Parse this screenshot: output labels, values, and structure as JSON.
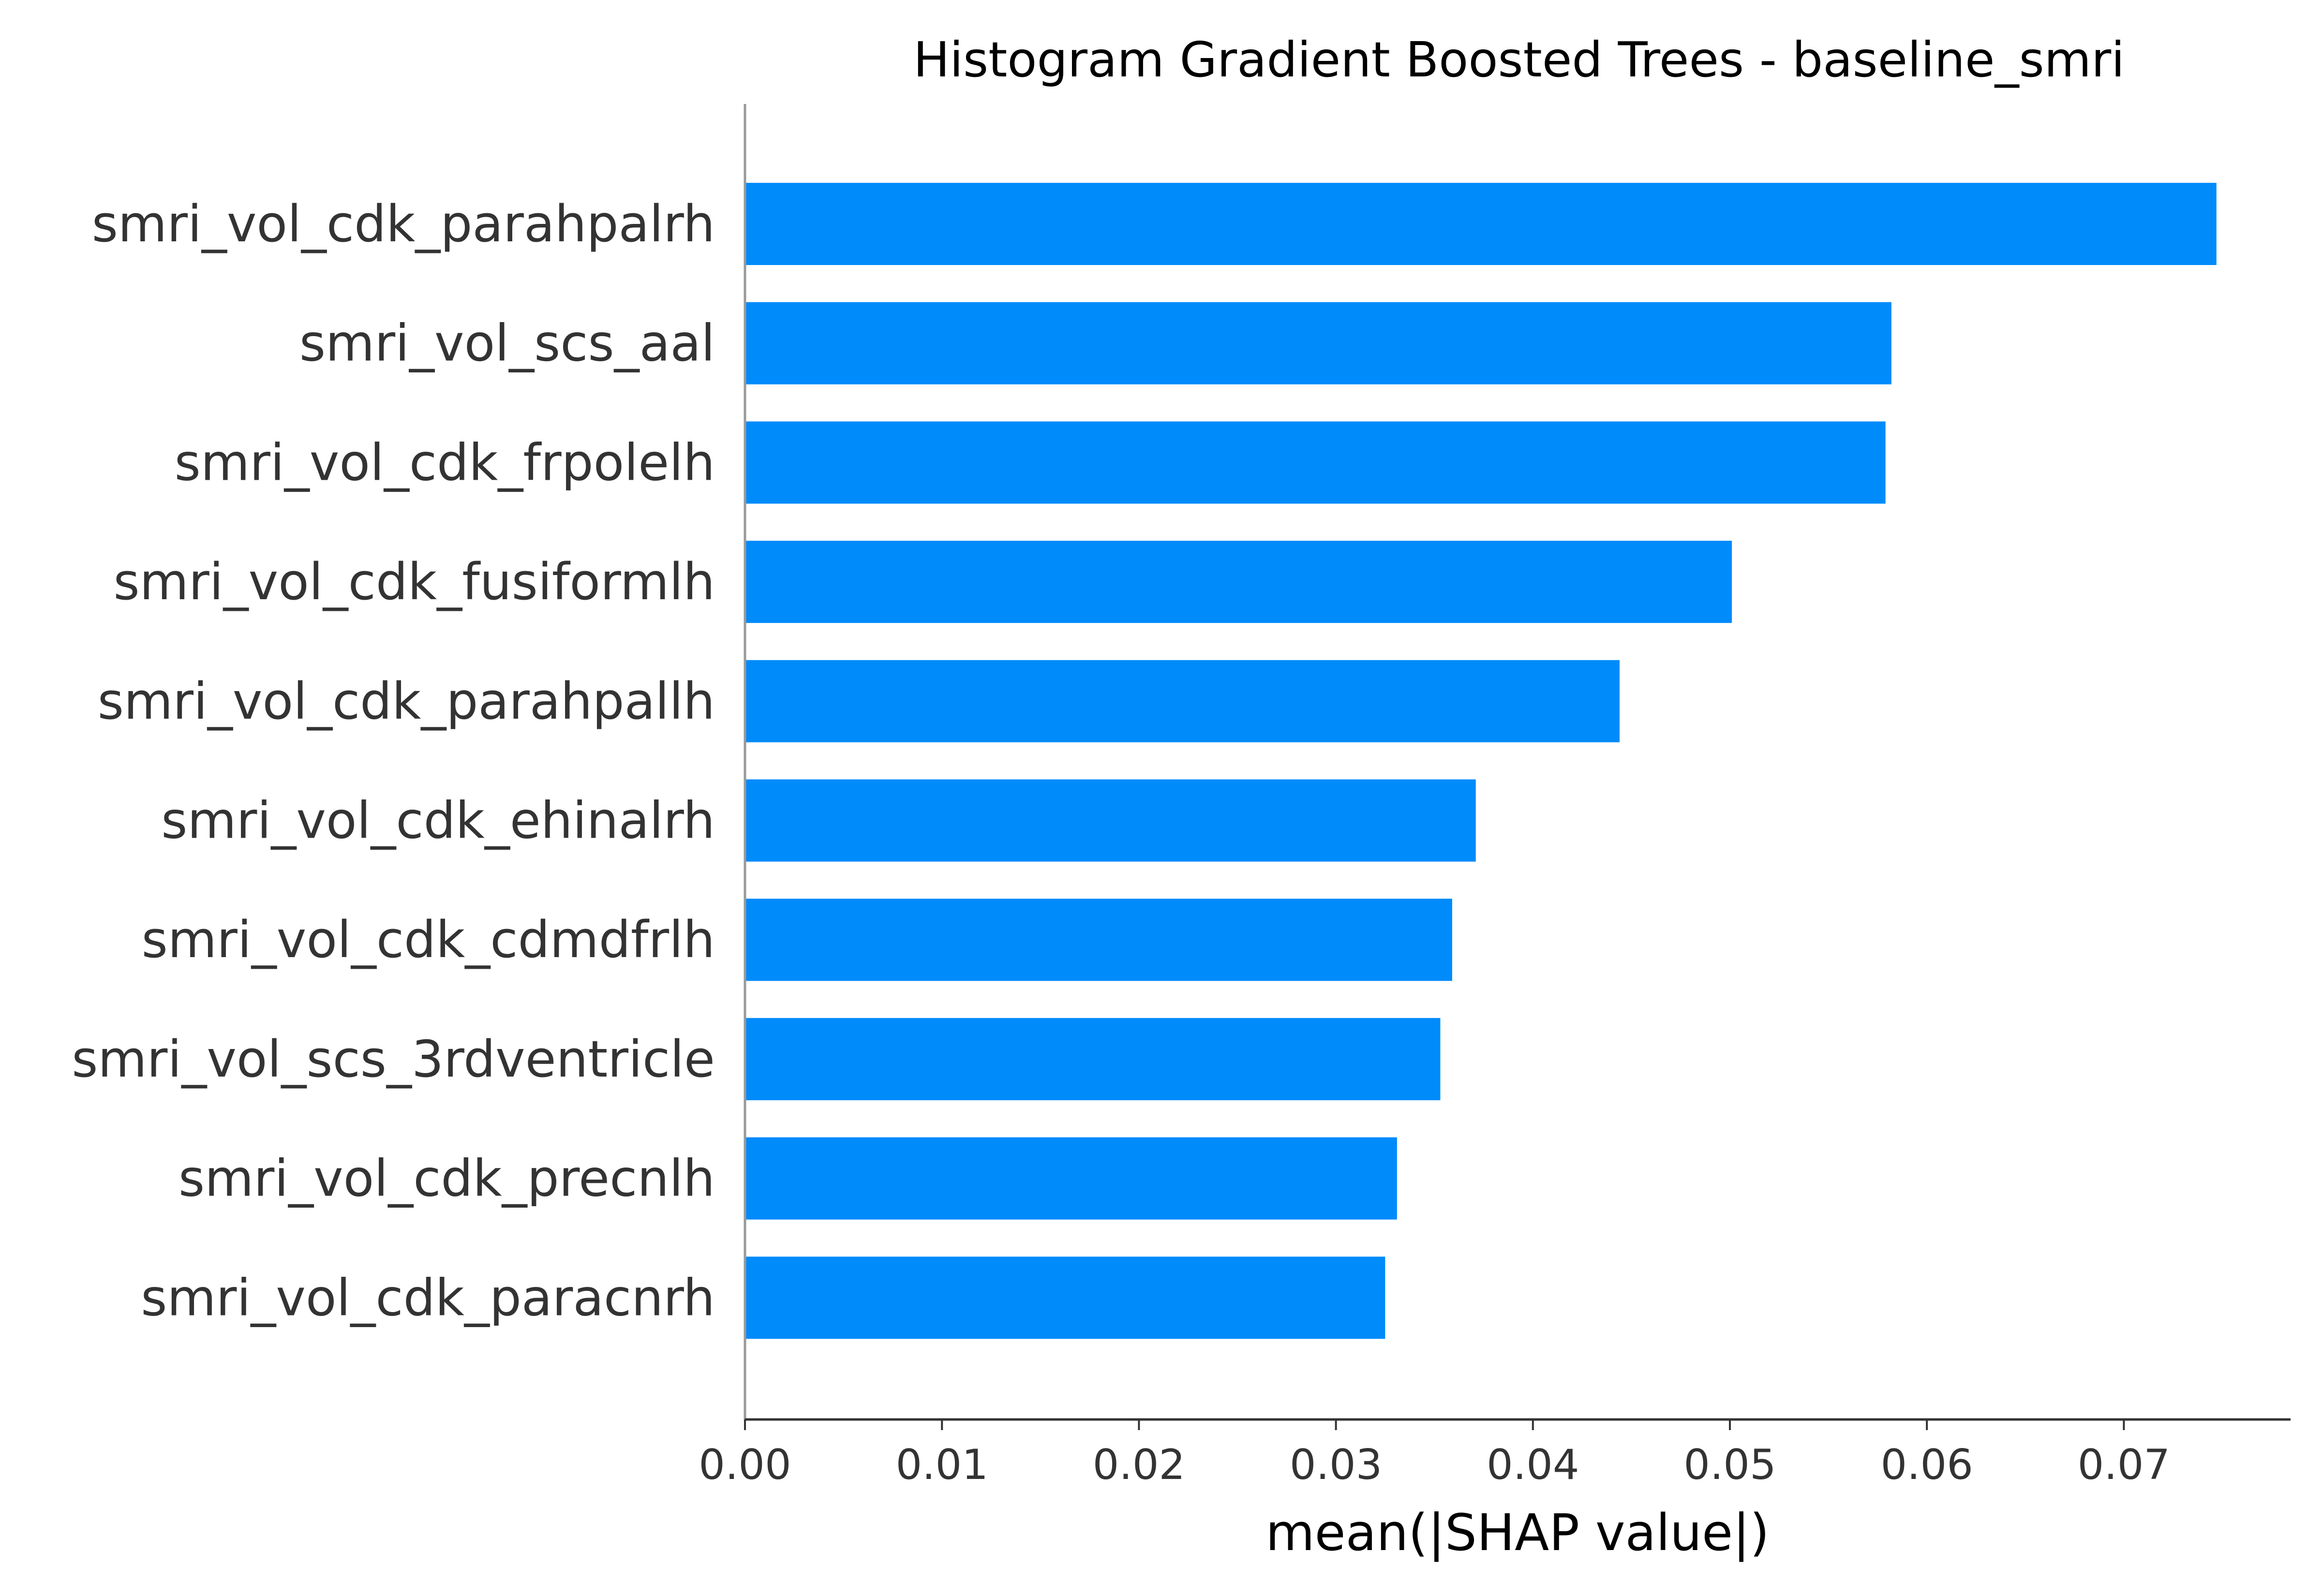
{
  "chart_data": {
    "type": "bar",
    "orientation": "horizontal",
    "title": "Histogram Gradient Boosted Trees - baseline_smri",
    "xlabel": "mean(|SHAP value|)",
    "ylabel": "",
    "categories": [
      "smri_vol_cdk_parahpalrh",
      "smri_vol_scs_aal",
      "smri_vol_cdk_frpolelh",
      "smri_vol_cdk_fusiformlh",
      "smri_vol_cdk_parahpallh",
      "smri_vol_cdk_ehinalrh",
      "smri_vol_cdk_cdmdfrlh",
      "smri_vol_scs_3rdventricle",
      "smri_vol_cdk_precnlh",
      "smri_vol_cdk_paracnrh"
    ],
    "values": [
      0.0747,
      0.0582,
      0.0579,
      0.0501,
      0.0444,
      0.0371,
      0.0359,
      0.0353,
      0.0331,
      0.0325
    ],
    "xlim": [
      0.0,
      0.0785
    ],
    "xticks": [
      {
        "value": 0.0,
        "label": "0.00"
      },
      {
        "value": 0.01,
        "label": "0.01"
      },
      {
        "value": 0.02,
        "label": "0.02"
      },
      {
        "value": 0.03,
        "label": "0.03"
      },
      {
        "value": 0.04,
        "label": "0.04"
      },
      {
        "value": 0.05,
        "label": "0.05"
      },
      {
        "value": 0.06,
        "label": "0.06"
      },
      {
        "value": 0.07,
        "label": "0.07"
      }
    ],
    "bar_color": "#008bfb",
    "grid": false,
    "legend": "none"
  }
}
